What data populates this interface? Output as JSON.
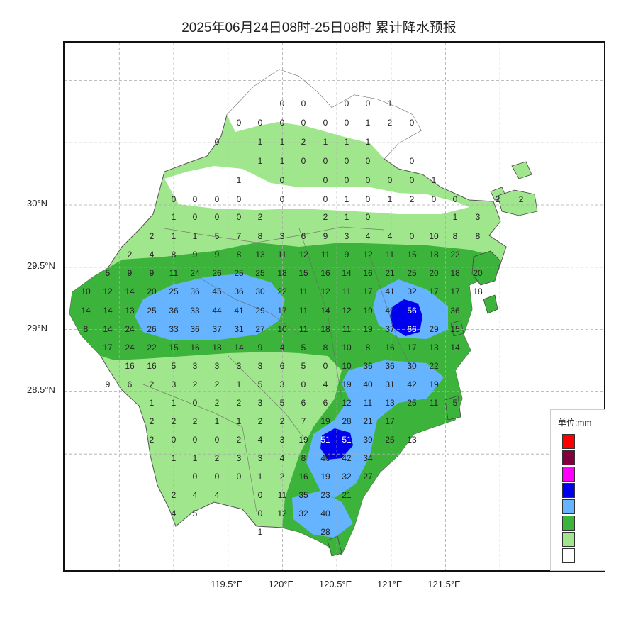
{
  "title": "2025年06月24日08时-25日08时 累计降水预报",
  "lat_labels": [
    {
      "text": "30°N",
      "lat": 30.0
    },
    {
      "text": "29.5°N",
      "lat": 29.5
    },
    {
      "text": "29°N",
      "lat": 29.0
    },
    {
      "text": "28.5°N",
      "lat": 28.5
    }
  ],
  "lon_labels": [
    {
      "text": "119.5°E",
      "lon": 119.5
    },
    {
      "text": "120°E",
      "lon": 120.0
    },
    {
      "text": "120.5°E",
      "lon": 120.5
    },
    {
      "text": "121°E",
      "lon": 121.0
    },
    {
      "text": "121.5°E",
      "lon": 121.5
    }
  ],
  "legend": {
    "title": "单位:mm",
    "colors": [
      "#ff0000",
      "#800040",
      "#ff00ff",
      "#0000ee",
      "#66b4ff",
      "#3cb43c",
      "#a0e68c",
      "#ffffff"
    ]
  },
  "colors": {
    "light_green": "#a0e68c",
    "green": "#3cb43c",
    "light_blue": "#66b4ff",
    "blue": "#0000ee",
    "grid": "#aaaaaa",
    "coast": "#444444"
  },
  "rows": [
    {
      "y": 145,
      "cells": [
        [
          396,
          "0"
        ],
        [
          426,
          "0"
        ],
        [
          487,
          "0"
        ],
        [
          517,
          "0"
        ],
        [
          548,
          "1"
        ]
      ]
    },
    {
      "y": 172,
      "cells": [
        [
          335,
          "0"
        ],
        [
          365,
          "0"
        ],
        [
          396,
          "0"
        ],
        [
          426,
          "0"
        ],
        [
          457,
          "0"
        ],
        [
          487,
          "0"
        ],
        [
          517,
          "1"
        ],
        [
          548,
          "2"
        ],
        [
          579,
          "0"
        ]
      ]
    },
    {
      "y": 199,
      "cells": [
        [
          304,
          "0"
        ],
        [
          365,
          "1"
        ],
        [
          396,
          "1"
        ],
        [
          426,
          "2"
        ],
        [
          457,
          "1"
        ],
        [
          487,
          "1"
        ],
        [
          517,
          "1"
        ]
      ]
    },
    {
      "y": 226,
      "cells": [
        [
          365,
          "1"
        ],
        [
          396,
          "1"
        ],
        [
          426,
          "0"
        ],
        [
          457,
          "0"
        ],
        [
          487,
          "0"
        ],
        [
          517,
          "0"
        ],
        [
          579,
          "0"
        ]
      ]
    },
    {
      "y": 253,
      "cells": [
        [
          335,
          "1"
        ],
        [
          396,
          "0"
        ],
        [
          457,
          "0"
        ],
        [
          487,
          "0"
        ],
        [
          517,
          "0"
        ],
        [
          548,
          "0"
        ],
        [
          579,
          "0"
        ],
        [
          610,
          "1"
        ]
      ]
    },
    {
      "y": 280,
      "cells": [
        [
          243,
          "0"
        ],
        [
          273,
          "0"
        ],
        [
          304,
          "0"
        ],
        [
          335,
          "0"
        ],
        [
          396,
          "0"
        ],
        [
          457,
          "0"
        ],
        [
          487,
          "1"
        ],
        [
          517,
          "0"
        ],
        [
          548,
          "1"
        ],
        [
          579,
          "2"
        ],
        [
          610,
          "0"
        ],
        [
          640,
          "0"
        ],
        [
          700,
          "2"
        ],
        [
          733,
          "2"
        ]
      ]
    },
    {
      "y": 305,
      "cells": [
        [
          243,
          "1"
        ],
        [
          273,
          "0"
        ],
        [
          304,
          "0"
        ],
        [
          335,
          "0"
        ],
        [
          365,
          "2"
        ],
        [
          457,
          "2"
        ],
        [
          487,
          "1"
        ],
        [
          517,
          "0"
        ],
        [
          640,
          "1"
        ],
        [
          672,
          "3"
        ]
      ]
    },
    {
      "y": 332,
      "cells": [
        [
          212,
          "2"
        ],
        [
          243,
          "1"
        ],
        [
          273,
          "1"
        ],
        [
          304,
          "5"
        ],
        [
          335,
          "7"
        ],
        [
          365,
          "8"
        ],
        [
          396,
          "3"
        ],
        [
          426,
          "6"
        ],
        [
          457,
          "9"
        ],
        [
          487,
          "3"
        ],
        [
          517,
          "4"
        ],
        [
          548,
          "4"
        ],
        [
          579,
          "0"
        ],
        [
          610,
          "10"
        ],
        [
          640,
          "8"
        ],
        [
          672,
          "8"
        ]
      ]
    },
    {
      "y": 358,
      "cells": [
        [
          181,
          "2"
        ],
        [
          212,
          "4"
        ],
        [
          243,
          "8"
        ],
        [
          273,
          "9"
        ],
        [
          304,
          "9"
        ],
        [
          335,
          "8"
        ],
        [
          365,
          "13"
        ],
        [
          396,
          "11"
        ],
        [
          426,
          "12"
        ],
        [
          457,
          "11"
        ],
        [
          487,
          "9"
        ],
        [
          517,
          "12"
        ],
        [
          548,
          "11"
        ],
        [
          579,
          "15"
        ],
        [
          610,
          "18"
        ],
        [
          640,
          "22"
        ]
      ]
    },
    {
      "y": 384,
      "cells": [
        [
          150,
          "5"
        ],
        [
          181,
          "9"
        ],
        [
          212,
          "9"
        ],
        [
          243,
          "11"
        ],
        [
          273,
          "24"
        ],
        [
          304,
          "26"
        ],
        [
          335,
          "25"
        ],
        [
          365,
          "25"
        ],
        [
          396,
          "18"
        ],
        [
          426,
          "15"
        ],
        [
          457,
          "16"
        ],
        [
          487,
          "14"
        ],
        [
          517,
          "16"
        ],
        [
          548,
          "21"
        ],
        [
          579,
          "25"
        ],
        [
          610,
          "20"
        ],
        [
          640,
          "18"
        ],
        [
          672,
          "20"
        ]
      ]
    },
    {
      "y": 410,
      "cells": [
        [
          119,
          "10"
        ],
        [
          150,
          "12"
        ],
        [
          181,
          "14"
        ],
        [
          212,
          "20"
        ],
        [
          243,
          "25"
        ],
        [
          273,
          "36"
        ],
        [
          304,
          "45"
        ],
        [
          335,
          "36"
        ],
        [
          365,
          "30"
        ],
        [
          396,
          "22"
        ],
        [
          426,
          "11"
        ],
        [
          457,
          "12"
        ],
        [
          487,
          "11"
        ],
        [
          517,
          "17"
        ],
        [
          548,
          "41"
        ],
        [
          579,
          "32"
        ],
        [
          610,
          "17"
        ],
        [
          640,
          "17"
        ],
        [
          672,
          "18"
        ]
      ]
    },
    {
      "y": 437,
      "cells": [
        [
          119,
          "14"
        ],
        [
          150,
          "14"
        ],
        [
          181,
          "13"
        ],
        [
          212,
          "25"
        ],
        [
          243,
          "36"
        ],
        [
          273,
          "33"
        ],
        [
          304,
          "44"
        ],
        [
          335,
          "41"
        ],
        [
          365,
          "29"
        ],
        [
          396,
          "17"
        ],
        [
          426,
          "11"
        ],
        [
          457,
          "14"
        ],
        [
          487,
          "12"
        ],
        [
          517,
          "19"
        ],
        [
          548,
          "49"
        ],
        [
          579,
          "56",
          "hi"
        ],
        [
          640,
          "36"
        ]
      ]
    },
    {
      "y": 463,
      "cells": [
        [
          119,
          "8"
        ],
        [
          150,
          "14"
        ],
        [
          181,
          "24"
        ],
        [
          212,
          "26"
        ],
        [
          243,
          "33"
        ],
        [
          273,
          "36"
        ],
        [
          304,
          "37"
        ],
        [
          335,
          "31"
        ],
        [
          365,
          "27"
        ],
        [
          396,
          "10"
        ],
        [
          426,
          "11"
        ],
        [
          457,
          "18"
        ],
        [
          487,
          "11"
        ],
        [
          517,
          "19"
        ],
        [
          548,
          "37"
        ],
        [
          579,
          "66",
          "hi"
        ],
        [
          610,
          "29"
        ],
        [
          640,
          "15"
        ]
      ]
    },
    {
      "y": 489,
      "cells": [
        [
          150,
          "17"
        ],
        [
          181,
          "24"
        ],
        [
          212,
          "22"
        ],
        [
          243,
          "15"
        ],
        [
          273,
          "16"
        ],
        [
          304,
          "18"
        ],
        [
          335,
          "14"
        ],
        [
          365,
          "9"
        ],
        [
          396,
          "4"
        ],
        [
          426,
          "5"
        ],
        [
          457,
          "8"
        ],
        [
          487,
          "10"
        ],
        [
          517,
          "8"
        ],
        [
          548,
          "16"
        ],
        [
          579,
          "17"
        ],
        [
          610,
          "13"
        ],
        [
          640,
          "14"
        ]
      ]
    },
    {
      "y": 515,
      "cells": [
        [
          181,
          "16"
        ],
        [
          212,
          "16"
        ],
        [
          243,
          "5"
        ],
        [
          273,
          "3"
        ],
        [
          304,
          "3"
        ],
        [
          335,
          "3"
        ],
        [
          365,
          "3"
        ],
        [
          396,
          "6"
        ],
        [
          426,
          "5"
        ],
        [
          457,
          "0"
        ],
        [
          487,
          "10"
        ],
        [
          517,
          "36"
        ],
        [
          548,
          "36"
        ],
        [
          579,
          "30"
        ],
        [
          610,
          "22"
        ]
      ]
    },
    {
      "y": 541,
      "cells": [
        [
          150,
          "9"
        ],
        [
          181,
          "6"
        ],
        [
          212,
          "2"
        ],
        [
          243,
          "3"
        ],
        [
          273,
          "2"
        ],
        [
          304,
          "2"
        ],
        [
          335,
          "1"
        ],
        [
          365,
          "5"
        ],
        [
          396,
          "3"
        ],
        [
          426,
          "0"
        ],
        [
          457,
          "4"
        ],
        [
          487,
          "19"
        ],
        [
          517,
          "40"
        ],
        [
          548,
          "31"
        ],
        [
          579,
          "42"
        ],
        [
          610,
          "19"
        ]
      ]
    },
    {
      "y": 567,
      "cells": [
        [
          212,
          "1"
        ],
        [
          243,
          "1"
        ],
        [
          273,
          "0"
        ],
        [
          304,
          "2"
        ],
        [
          335,
          "2"
        ],
        [
          365,
          "3"
        ],
        [
          396,
          "5"
        ],
        [
          426,
          "6"
        ],
        [
          457,
          "6"
        ],
        [
          487,
          "12"
        ],
        [
          517,
          "11"
        ],
        [
          548,
          "13"
        ],
        [
          579,
          "25"
        ],
        [
          610,
          "11"
        ],
        [
          640,
          "5"
        ]
      ]
    },
    {
      "y": 593,
      "cells": [
        [
          212,
          "2"
        ],
        [
          243,
          "2"
        ],
        [
          273,
          "2"
        ],
        [
          304,
          "1"
        ],
        [
          335,
          "1"
        ],
        [
          365,
          "2"
        ],
        [
          396,
          "2"
        ],
        [
          426,
          "7"
        ],
        [
          457,
          "19"
        ],
        [
          487,
          "28"
        ],
        [
          517,
          "21"
        ],
        [
          548,
          "17"
        ]
      ]
    },
    {
      "y": 619,
      "cells": [
        [
          212,
          "2"
        ],
        [
          243,
          "0"
        ],
        [
          273,
          "0"
        ],
        [
          304,
          "0"
        ],
        [
          335,
          "2"
        ],
        [
          365,
          "4"
        ],
        [
          396,
          "3"
        ],
        [
          426,
          "19"
        ],
        [
          457,
          "51",
          "hi"
        ],
        [
          487,
          "51",
          "hi"
        ],
        [
          517,
          "39"
        ],
        [
          548,
          "25"
        ],
        [
          579,
          "13"
        ]
      ]
    },
    {
      "y": 645,
      "cells": [
        [
          243,
          "1"
        ],
        [
          273,
          "1"
        ],
        [
          304,
          "2"
        ],
        [
          335,
          "3"
        ],
        [
          365,
          "3"
        ],
        [
          396,
          "4"
        ],
        [
          426,
          "8"
        ],
        [
          457,
          "40"
        ],
        [
          487,
          "42"
        ],
        [
          517,
          "34"
        ]
      ]
    },
    {
      "y": 671,
      "cells": [
        [
          273,
          "0"
        ],
        [
          304,
          "0"
        ],
        [
          335,
          "0"
        ],
        [
          365,
          "1"
        ],
        [
          396,
          "2"
        ],
        [
          426,
          "16"
        ],
        [
          457,
          "19"
        ],
        [
          487,
          "32"
        ],
        [
          517,
          "27"
        ]
      ]
    },
    {
      "y": 697,
      "cells": [
        [
          243,
          "2"
        ],
        [
          273,
          "4"
        ],
        [
          304,
          "4"
        ],
        [
          365,
          "0"
        ],
        [
          396,
          "11"
        ],
        [
          426,
          "35"
        ],
        [
          457,
          "23"
        ],
        [
          487,
          "21"
        ]
      ]
    },
    {
      "y": 723,
      "cells": [
        [
          243,
          "4"
        ],
        [
          273,
          "5"
        ],
        [
          365,
          "0"
        ],
        [
          396,
          "12"
        ],
        [
          426,
          "32"
        ],
        [
          457,
          "40"
        ]
      ]
    },
    {
      "y": 749,
      "cells": [
        [
          365,
          "1"
        ],
        [
          457,
          "28"
        ]
      ]
    }
  ]
}
